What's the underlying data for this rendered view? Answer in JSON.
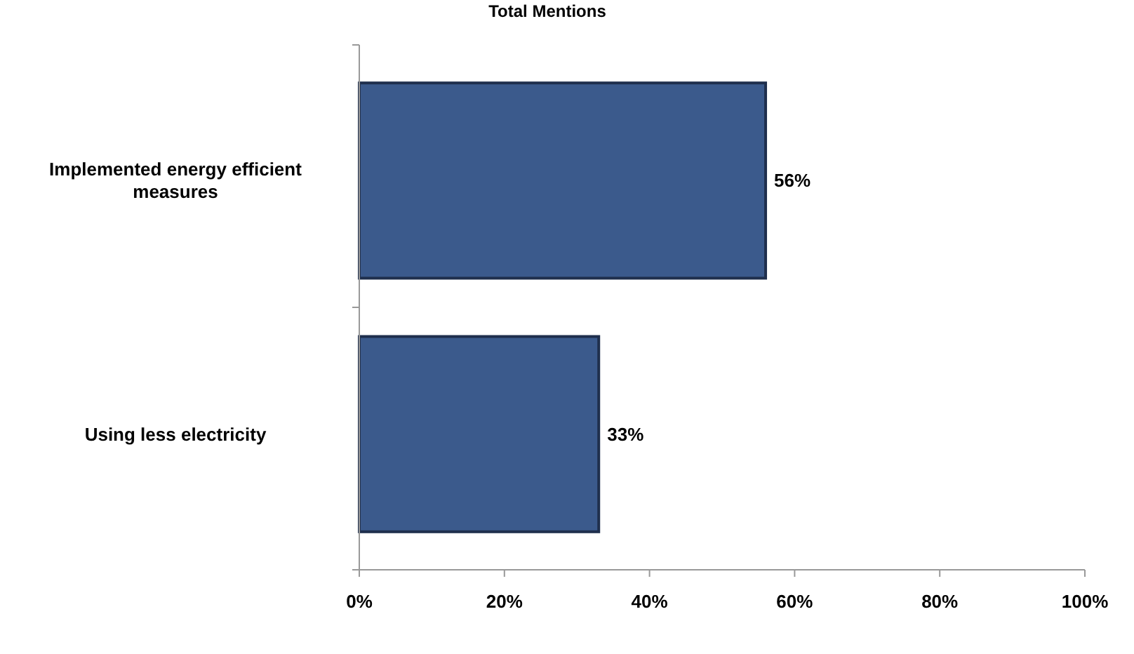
{
  "chart_data": {
    "type": "bar",
    "orientation": "horizontal",
    "subtitle": "Total Mentions",
    "categories": [
      "Implemented energy efficient measures",
      "Using less electricity"
    ],
    "values": [
      56,
      33
    ],
    "color": "#3b5a8c",
    "data_labels": true,
    "value_labels": [
      "56%",
      "33%"
    ],
    "xlim": [
      0,
      100
    ],
    "xticks": [
      {
        "value": 0,
        "label": "0%"
      },
      {
        "value": 20,
        "label": "20%"
      },
      {
        "value": 40,
        "label": "40%"
      },
      {
        "value": 60,
        "label": "60%"
      },
      {
        "value": 80,
        "label": "80%"
      },
      {
        "value": 100,
        "label": "100%"
      }
    ],
    "grid": false
  }
}
